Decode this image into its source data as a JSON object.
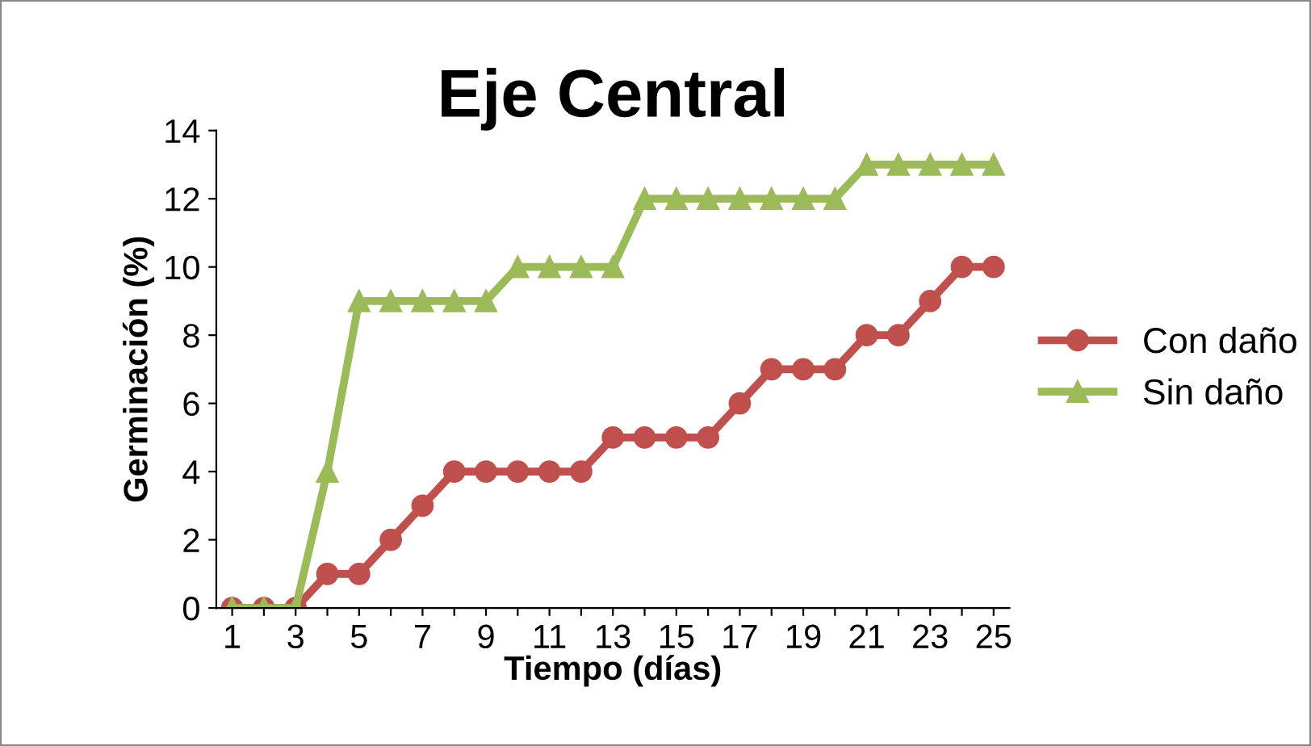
{
  "chart_data": {
    "type": "line",
    "title": "Eje Central",
    "xlabel": "Tiempo (días)",
    "ylabel": "Germinación (%)",
    "categories": [
      "1",
      null,
      "3",
      null,
      "5",
      null,
      "7",
      null,
      "9",
      null,
      "11",
      null,
      "13",
      null,
      "15",
      null,
      "17",
      null,
      "19",
      null,
      "21",
      null,
      "23",
      null,
      "25"
    ],
    "series": [
      {
        "name": "Con daño",
        "color": "#c0504d",
        "marker": "circle",
        "values": [
          0,
          0,
          0,
          1,
          1,
          2,
          3,
          4,
          4,
          4,
          4,
          4,
          5,
          5,
          5,
          5,
          6,
          7,
          7,
          7,
          8,
          8,
          9,
          10,
          10
        ]
      },
      {
        "name": "Sin daño",
        "color": "#9bbb59",
        "marker": "triangle",
        "values": [
          0,
          0,
          0,
          4,
          9,
          9,
          9,
          9,
          9,
          10,
          10,
          10,
          10,
          12,
          12,
          12,
          12,
          12,
          12,
          12,
          13,
          13,
          13,
          13,
          13
        ]
      }
    ],
    "ylim": [
      0,
      14
    ],
    "yticks": [
      0,
      2,
      4,
      6,
      8,
      10,
      12,
      14
    ],
    "grid": false,
    "legend": "right",
    "line_style": "solid"
  }
}
